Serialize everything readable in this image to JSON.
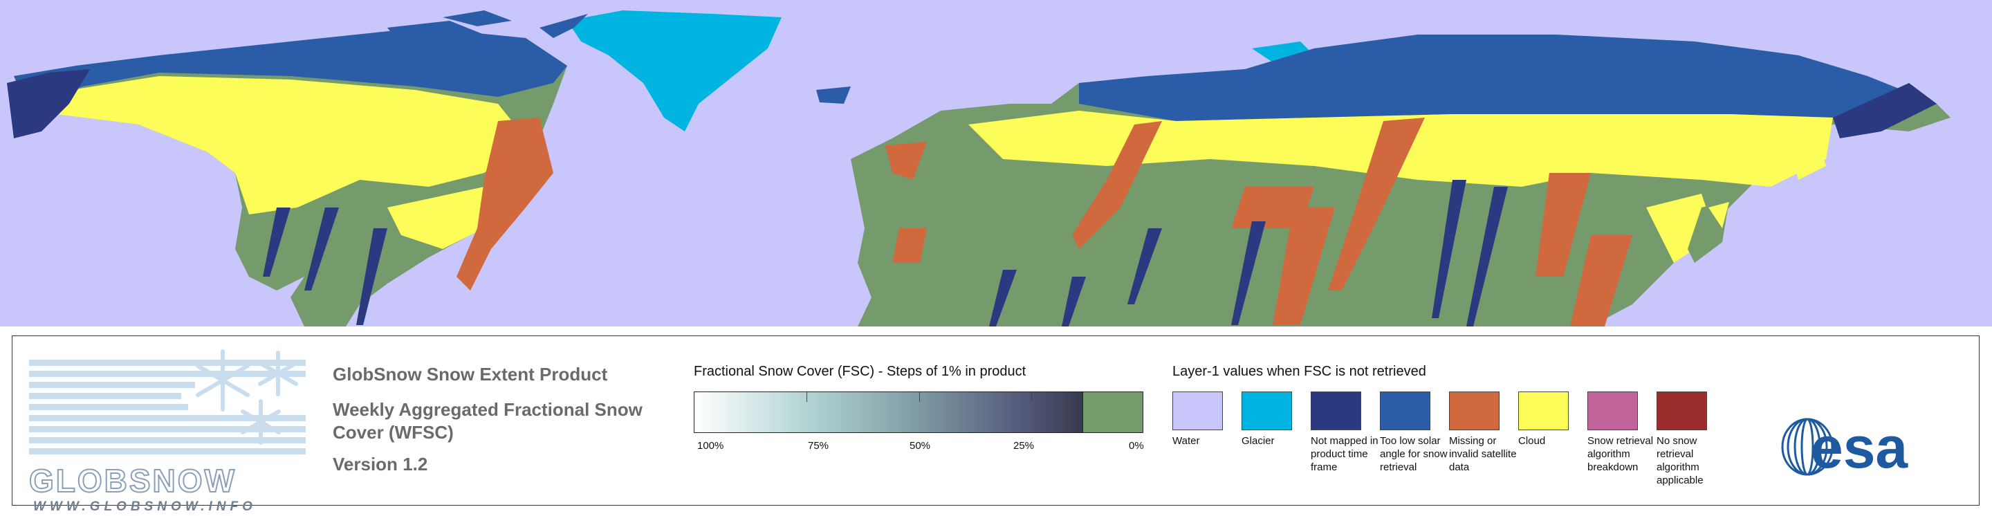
{
  "map": {
    "colors": {
      "water": "#c8c6fa",
      "glacier": "#00b4e2",
      "not_mapped": "#2b3a80",
      "low_solar": "#2a5ca8",
      "missing": "#d06a3e",
      "cloud": "#fdfd5a",
      "land_no_snow": "#759a6c"
    }
  },
  "logo": {
    "word": "GLOBSNOW",
    "url": "WWW.GLOBSNOW.INFO"
  },
  "product": {
    "title": "GlobSnow Snow Extent Product",
    "subtitle": "Weekly Aggregated Fractional Snow Cover (WFSC)",
    "version": "Version 1.2"
  },
  "fsc_legend": {
    "title": "Fractional Snow Cover (FSC) - Steps of 1% in product",
    "labels": [
      "100%",
      "75%",
      "50%",
      "25%",
      "0%"
    ]
  },
  "layer1_legend": {
    "title": "Layer-1 values when FSC is not retrieved",
    "items": [
      {
        "label": "Water",
        "color": "#c8c6fa"
      },
      {
        "label": "Glacier",
        "color": "#00b4e2"
      },
      {
        "label": "Not mapped in product time frame",
        "color": "#2b3a80"
      },
      {
        "label": "Too low solar angle for snow retrieval",
        "color": "#2a5ca8"
      },
      {
        "label": "Missing or invalid satellite data",
        "color": "#d06a3e"
      },
      {
        "label": "Cloud",
        "color": "#fdfd5a"
      },
      {
        "label": "Snow retrieval algorithm breakdown",
        "color": "#c2639b"
      },
      {
        "label": "No snow retrieval algorithm applicable",
        "color": "#9b2d2d"
      }
    ]
  },
  "esa_logo": {
    "text": "esa"
  }
}
